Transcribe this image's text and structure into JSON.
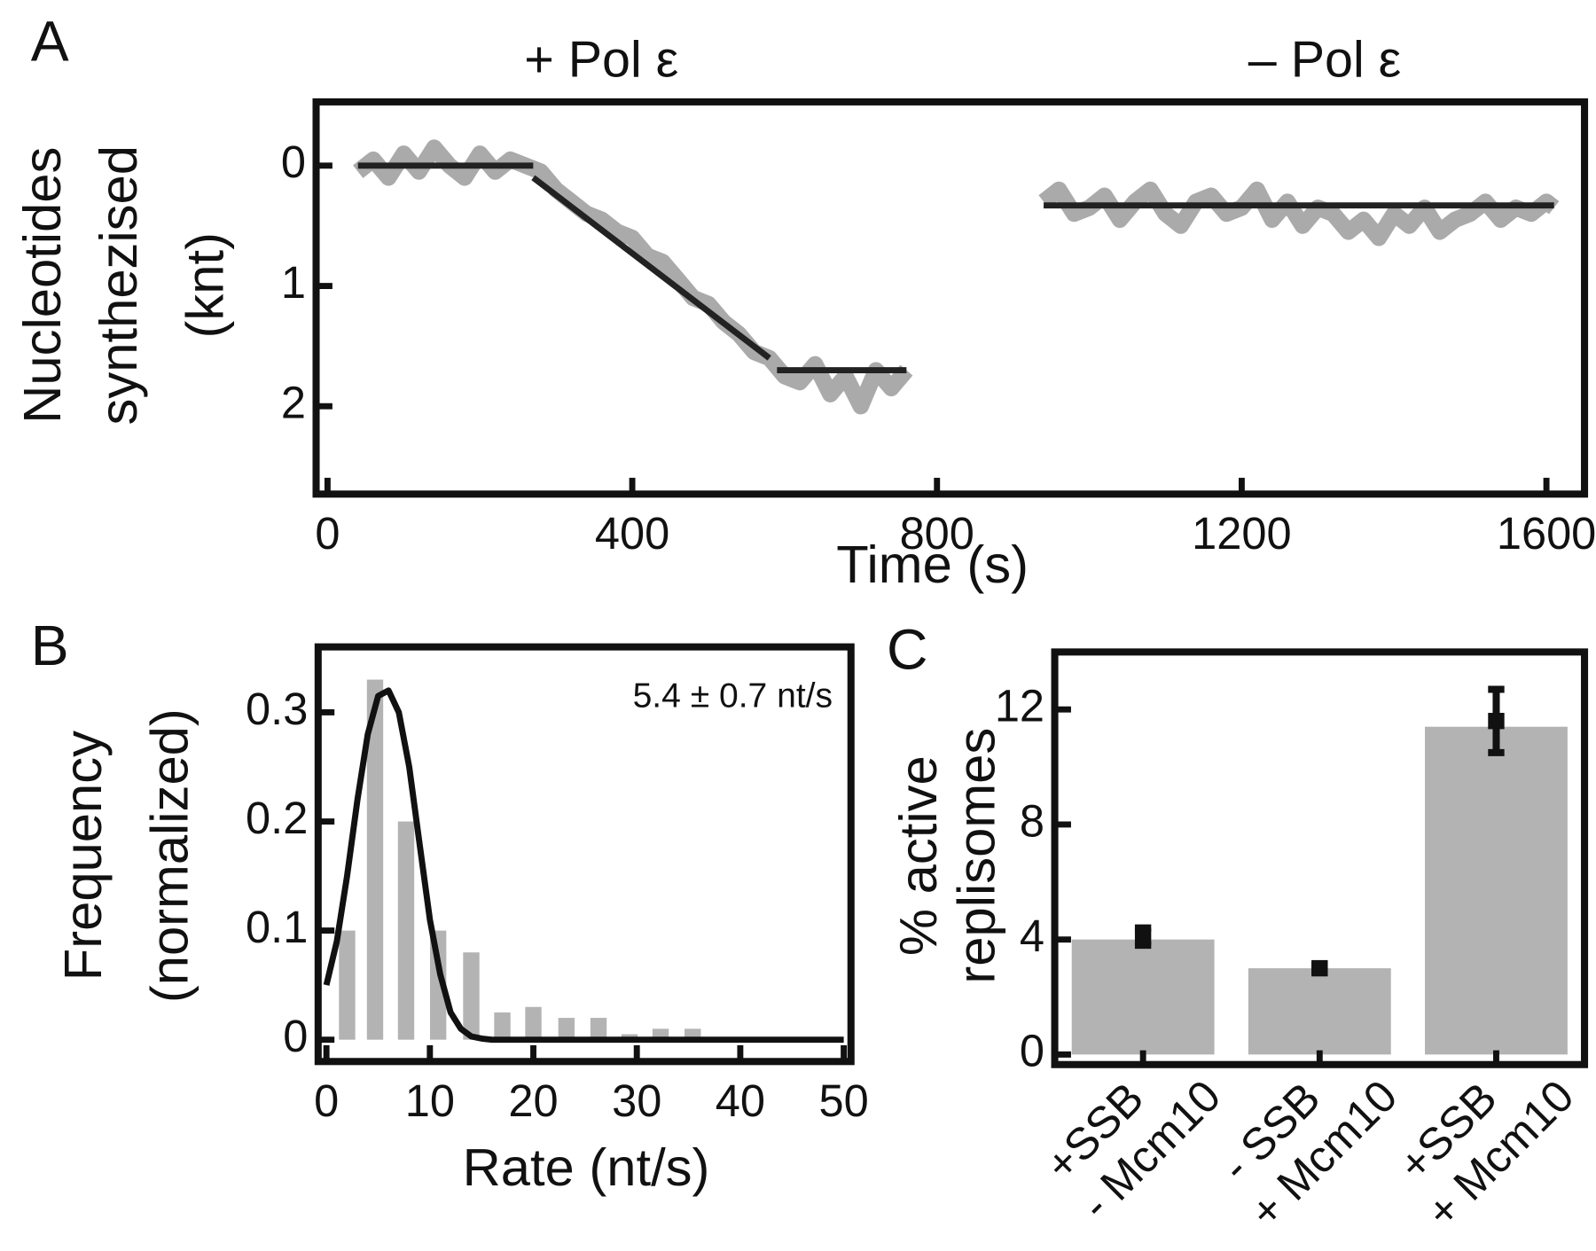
{
  "chart_data": [
    {
      "panel": "A",
      "type": "line",
      "titles": [
        "+ Pol ε",
        "– Pol ε"
      ],
      "ylabel": [
        "Nucleotides",
        "synthezised",
        "(knt)"
      ],
      "xlabel": "Time (s)",
      "xlim": [
        -15,
        1650
      ],
      "xticks": [
        0,
        400,
        800,
        1200,
        1600
      ],
      "ylim": [
        -0.53,
        2.73
      ],
      "yticks": [
        0,
        1,
        2
      ],
      "yinvert": true,
      "series": [
        {
          "type": "line",
          "color": "#aaaaaa",
          "x": [
            40,
            60,
            80,
            100,
            120,
            140,
            160,
            180,
            200,
            220,
            240,
            260,
            280,
            300,
            320,
            340,
            360,
            380,
            400,
            420,
            440,
            460,
            480,
            500,
            520,
            540,
            560,
            580,
            600,
            620,
            640,
            660,
            680,
            700,
            720,
            740,
            760,
            null,
            940,
            960,
            980,
            1000,
            1020,
            1040,
            1060,
            1080,
            1100,
            1120,
            1140,
            1160,
            1180,
            1200,
            1220,
            1240,
            1260,
            1280,
            1300,
            1320,
            1340,
            1360,
            1380,
            1400,
            1420,
            1440,
            1460,
            1480,
            1500,
            1520,
            1540,
            1560,
            1580,
            1600,
            1610
          ],
          "values": [
            0.05,
            -0.05,
            0.1,
            -0.1,
            0.05,
            -0.15,
            0.0,
            0.1,
            -0.1,
            0.05,
            -0.05,
            0.0,
            0.05,
            0.2,
            0.3,
            0.4,
            0.45,
            0.55,
            0.6,
            0.75,
            0.8,
            0.95,
            1.1,
            1.15,
            1.3,
            1.4,
            1.55,
            1.6,
            1.75,
            1.8,
            1.65,
            1.9,
            1.75,
            2.0,
            1.7,
            1.85,
            1.7,
            null,
            0.3,
            0.2,
            0.4,
            0.35,
            0.25,
            0.45,
            0.3,
            0.2,
            0.4,
            0.5,
            0.3,
            0.25,
            0.4,
            0.35,
            0.2,
            0.45,
            0.3,
            0.5,
            0.35,
            0.4,
            0.55,
            0.45,
            0.6,
            0.4,
            0.5,
            0.35,
            0.55,
            0.45,
            0.4,
            0.3,
            0.45,
            0.35,
            0.4,
            0.3,
            0.35
          ]
        },
        {
          "type": "line",
          "color": "#222222",
          "x": [
            40,
            270,
            null,
            270,
            580,
            null,
            590,
            760,
            null,
            940,
            1610
          ],
          "values": [
            0,
            0,
            null,
            0.1,
            1.6,
            null,
            1.7,
            1.7,
            null,
            0.33,
            0.33
          ]
        }
      ]
    },
    {
      "panel": "B",
      "type": "bar",
      "annotation": "5.4 ± 0.7 nt/s",
      "ylabel": [
        "Frequency",
        "(normalized)"
      ],
      "xlabel": "Rate (nt/s)",
      "xlim": [
        -0.8,
        50.7
      ],
      "xticks": [
        0,
        10,
        20,
        30,
        40,
        50
      ],
      "ylim": [
        -0.02,
        0.36
      ],
      "yticks": [
        0,
        0.1,
        0.2,
        0.3
      ],
      "series": [
        {
          "type": "bar",
          "color": "#b3b3b3",
          "x": [
            2,
            4.7,
            7.7,
            10.8,
            14,
            17,
            20,
            23.2,
            26.3,
            29.3,
            32.3,
            35.4
          ],
          "values": [
            0.1,
            0.33,
            0.2,
            0.1,
            0.08,
            0.025,
            0.03,
            0.02,
            0.02,
            0.005,
            0.01,
            0.01
          ]
        },
        {
          "type": "line",
          "color": "#111111",
          "x": [
            0,
            1,
            2,
            3,
            4,
            5,
            6,
            7,
            8,
            9,
            10,
            11,
            12,
            13,
            14,
            15,
            16,
            20,
            30,
            40,
            50
          ],
          "values": [
            0.05,
            0.09,
            0.15,
            0.22,
            0.28,
            0.315,
            0.32,
            0.3,
            0.25,
            0.18,
            0.11,
            0.06,
            0.025,
            0.01,
            0.003,
            0.001,
            0,
            0,
            0,
            0,
            0
          ]
        }
      ]
    },
    {
      "panel": "C",
      "type": "bar",
      "ylabel": [
        "% active",
        "replisomes"
      ],
      "categories": [
        [
          "+SSB",
          "- Mcm10"
        ],
        [
          "- SSB",
          "+ Mcm10"
        ],
        [
          "+SSB",
          "+ Mcm10"
        ]
      ],
      "ylim": [
        -0.35,
        14.0
      ],
      "yticks": [
        0,
        4,
        8,
        12
      ],
      "series": [
        {
          "type": "bar",
          "color": "#b3b3b3",
          "values": [
            4.0,
            3.0,
            11.4
          ],
          "markers": [
            4.1,
            3.0,
            11.6
          ],
          "errors": [
            0.3,
            0.1,
            1.1
          ]
        }
      ]
    }
  ]
}
